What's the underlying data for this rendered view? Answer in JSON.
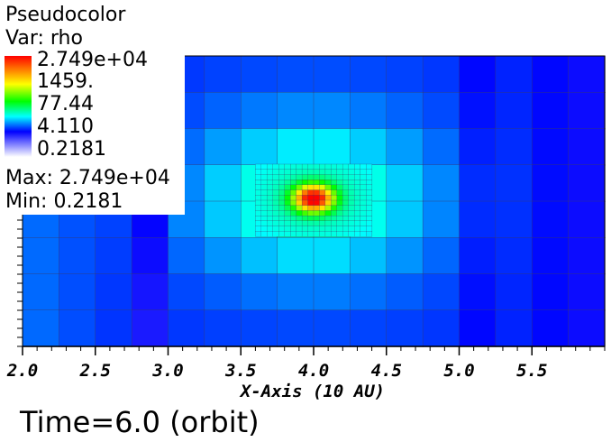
{
  "legend": {
    "plot_type": "Pseudocolor",
    "var_label": "Var: rho",
    "max_label": "Max:  2.749e+04",
    "min_label": "Min:  0.2181",
    "colorbar_labels": [
      "2.749e+04",
      "1459.",
      "77.44",
      "4.110",
      "0.2181"
    ]
  },
  "time_label": "Time=6.0 (orbit)",
  "colors": {
    "colormap": [
      "#ffffff",
      "#0000ff",
      "#00ffff",
      "#00ff00",
      "#ffff00",
      "#ff0000"
    ],
    "mesh_lines": "#3a3a6a"
  },
  "chart_data": {
    "type": "heatmap",
    "title": "Pseudocolor",
    "variable": "rho",
    "xlabel": "X-Axis (10 AU)",
    "x_ticks": [
      "2.0",
      "2.5",
      "3.0",
      "3.5",
      "4.0",
      "4.5",
      "5.0",
      "5.5"
    ],
    "xlim": [
      2.0,
      6.0
    ],
    "colorscale": "log",
    "value_range": [
      0.2181,
      27490
    ],
    "peak_location_x": 4.0,
    "time": "6.0 (orbit)"
  }
}
